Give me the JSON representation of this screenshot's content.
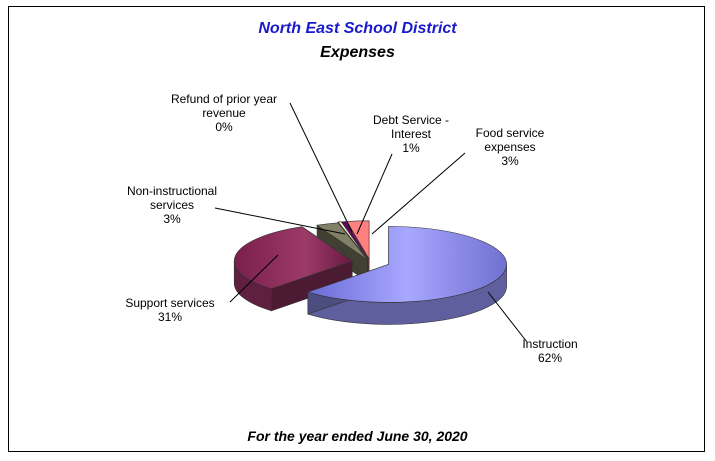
{
  "title": "North East School District",
  "subtitle": "Expenses",
  "footer": "For the year ended June 30, 2020",
  "chart_data": {
    "type": "pie",
    "title": "North East School District",
    "subtitle": "Expenses",
    "categories": [
      "Instruction",
      "Support services",
      "Non-instructional services",
      "Refund of prior year revenue",
      "Debt Service - Interest",
      "Food service expenses"
    ],
    "values": [
      62,
      31,
      3,
      0,
      1,
      3
    ],
    "percent_labels": [
      "62%",
      "31%",
      "3%",
      "0%",
      "1%",
      "3%"
    ],
    "label_lines": [
      [
        "Instruction"
      ],
      [
        "Support services"
      ],
      [
        "Non-instructional",
        "services"
      ],
      [
        "Refund of prior year",
        "revenue"
      ],
      [
        "Debt Service -",
        "Interest"
      ],
      [
        "Food service",
        "expenses"
      ]
    ],
    "colors": [
      "#9999ff",
      "#993366",
      "#808066",
      "#ffffcc",
      "#660066",
      "#ff8080"
    ],
    "style": "3D exploded pie",
    "legend": "none"
  }
}
